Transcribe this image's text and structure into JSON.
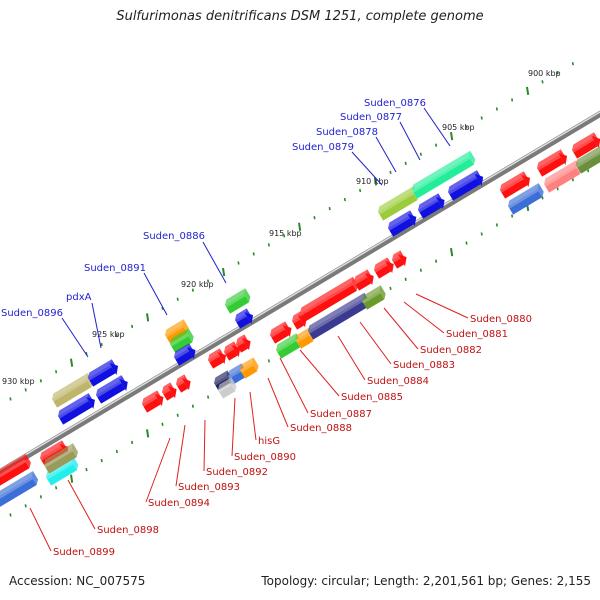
{
  "title": "Sulfurimonas denitrificans DSM 1251, complete genome",
  "footer": {
    "accession": "Accession: NC_007575",
    "summary": "Topology: circular; Length: 2,201,561 bp; Genes: 2,155"
  },
  "scale_labels": [
    "900 kbp",
    "905 kbp",
    "910 kbp",
    "915 kbp",
    "920 kbp",
    "925 kbp",
    "930 kbp"
  ],
  "colors": {
    "forward_label": "#1f1fd0",
    "reverse_label": "#c01010",
    "backbone": "#777777",
    "tick": "#2a8a2a"
  },
  "forward_labels": [
    "Suden_0876",
    "Suden_0877",
    "Suden_0878",
    "Suden_0879",
    "Suden_0886",
    "Suden_0891",
    "pdxA",
    "Suden_0896"
  ],
  "reverse_labels": [
    "Suden_0880",
    "Suden_0881",
    "Suden_0882",
    "Suden_0883",
    "Suden_0884",
    "Suden_0885",
    "Suden_0887",
    "Suden_0888",
    "hisG",
    "Suden_0890",
    "Suden_0892",
    "Suden_0893",
    "Suden_0894",
    "Suden_0898",
    "Suden_0899"
  ]
}
